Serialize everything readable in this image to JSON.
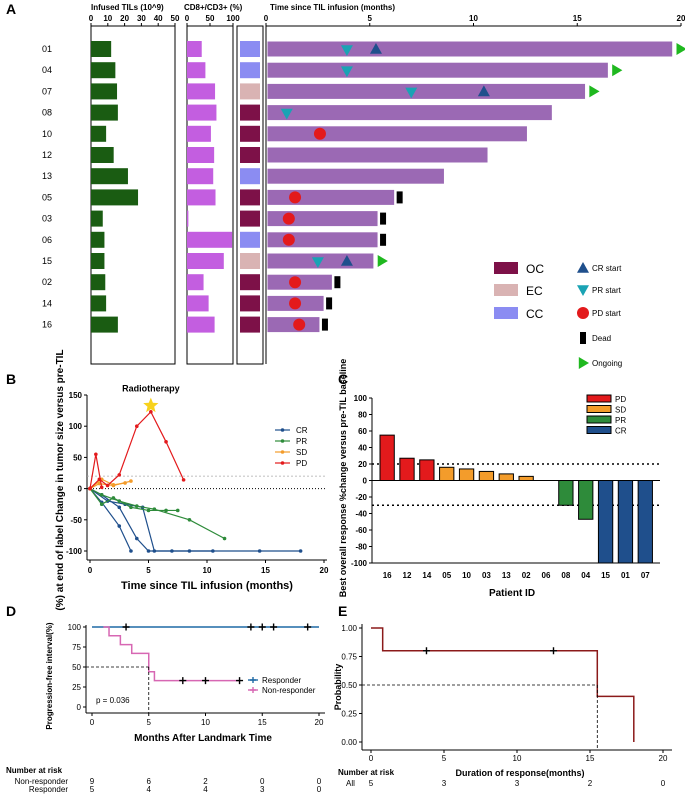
{
  "colors": {
    "infused": "#1a5c12",
    "cd8": "#c35ee0",
    "swim": "#9b69b4",
    "OC": "#7d1148",
    "EC": "#d9b3b3",
    "CC": "#8b8cf2",
    "cr": "#1f4f8c",
    "pr": "#1aa3b4",
    "pd": "#e31a1c",
    "dead": "#000000",
    "ongoing": "#1fb81f",
    "sd": "#f39c2b",
    "pr_bar": "#2e8b3a",
    "cr_bar": "#1f4f8c",
    "km_line": "#1f6aa5",
    "km_nonresp": "#d767b3",
    "km_e": "#8b1a1a"
  },
  "panel_labels": [
    "A",
    "B",
    "C",
    "D",
    "E"
  ],
  "chart_data": [
    {
      "panel": "A",
      "type": "bar",
      "subtype": "swimmer",
      "patients": [
        "01",
        "04",
        "07",
        "08",
        "10",
        "12",
        "13",
        "05",
        "03",
        "06",
        "15",
        "02",
        "14",
        "16"
      ],
      "infused_tils": {
        "title": "Infused TILs (10^9)",
        "ticks": [
          "0",
          "10",
          "20",
          "30",
          "40",
          "50"
        ],
        "xlim": [
          0,
          50
        ],
        "values": [
          12,
          14.5,
          15.5,
          16,
          9,
          13.5,
          22,
          28,
          7,
          8,
          8,
          8.5,
          9,
          16
        ]
      },
      "cd8_cd3": {
        "title": "CD8+/CD3+ (%)",
        "ticks": [
          "0",
          "50",
          "100"
        ],
        "xlim": [
          0,
          100
        ],
        "values": [
          32,
          40,
          61,
          64,
          52,
          59,
          57,
          62,
          3,
          98,
          80,
          36,
          47,
          60
        ]
      },
      "cancer_type": [
        "CC",
        "CC",
        "EC",
        "OC",
        "OC",
        "OC",
        "CC",
        "OC",
        "OC",
        "CC",
        "EC",
        "OC",
        "OC",
        "OC"
      ],
      "swim": {
        "title": "Time since TIL infusion (months)",
        "ticks": [
          "0",
          "5",
          "10",
          "15",
          "20"
        ],
        "xlim": [
          0,
          20
        ],
        "durations": [
          19.6,
          16.5,
          15.4,
          13.8,
          12.6,
          10.7,
          8.6,
          6.2,
          5.4,
          5.4,
          5.2,
          3.2,
          2.8,
          2.6
        ]
      },
      "events": {
        "cr_start": [
          [
            0,
            5.3
          ],
          [
            2,
            10.5
          ],
          [
            10,
            3.9
          ]
        ],
        "pr_start": [
          [
            0,
            3.9
          ],
          [
            1,
            3.9
          ],
          [
            2,
            7.0
          ],
          [
            3,
            1.0
          ],
          [
            10,
            2.5
          ]
        ],
        "pd_start": [
          [
            4,
            2.6
          ],
          [
            7,
            1.4
          ],
          [
            8,
            1.1
          ],
          [
            9,
            1.1
          ],
          [
            11,
            1.4
          ],
          [
            12,
            1.4
          ],
          [
            13,
            1.6
          ]
        ],
        "dead": [
          7,
          8,
          9,
          11,
          12,
          13
        ],
        "ongoing": [
          0,
          1,
          2,
          10
        ]
      },
      "legend": {
        "types": [
          "OC",
          "EC",
          "CC"
        ],
        "markers": [
          "CR start",
          "PR start",
          "PD start",
          "Dead",
          "Ongoing"
        ]
      }
    },
    {
      "panel": "B",
      "type": "line",
      "xlabel": "Time since TIL infusion (months)",
      "ylabel": "(%) at end of label Change in tumor size versus pre-TIL",
      "xticks": [
        "0",
        "5",
        "10",
        "15",
        "20"
      ],
      "yticks": [
        "150",
        "100",
        "50",
        "0",
        "-50",
        "-100"
      ],
      "xlim": [
        0,
        20
      ],
      "ylim": [
        -100,
        150
      ],
      "ref_line": 20,
      "annotation": "Radiotherapy",
      "annotation_point": [
        5.2,
        133
      ],
      "series": [
        {
          "name": "CR",
          "color": "#1f4f8c",
          "lines": [
            [
              [
                0,
                0
              ],
              [
                1,
                -22
              ],
              [
                2.5,
                -60
              ],
              [
                3.5,
                -100
              ]
            ],
            [
              [
                0,
                0
              ],
              [
                1.5,
                -20
              ],
              [
                3,
                -25
              ],
              [
                4.5,
                -30
              ],
              [
                5.5,
                -100
              ],
              [
                7,
                -100
              ],
              [
                8.5,
                -100
              ],
              [
                10.5,
                -100
              ]
            ],
            [
              [
                0,
                0
              ],
              [
                1,
                -10
              ],
              [
                2.5,
                -30
              ],
              [
                4,
                -80
              ],
              [
                5,
                -100
              ],
              [
                14.5,
                -100
              ],
              [
                18,
                -100
              ]
            ]
          ]
        },
        {
          "name": "PR",
          "color": "#2e8b3a",
          "lines": [
            [
              [
                0,
                0
              ],
              [
                1,
                -25
              ],
              [
                2,
                -15
              ],
              [
                3.5,
                -30
              ],
              [
                5,
                -35
              ],
              [
                6.5,
                -35
              ],
              [
                7.5,
                -35
              ]
            ],
            [
              [
                0,
                0
              ],
              [
                1,
                -10
              ],
              [
                2.5,
                -20
              ],
              [
                4,
                -28
              ],
              [
                5.5,
                -33
              ],
              [
                8.5,
                -50
              ],
              [
                11.5,
                -80
              ]
            ]
          ]
        },
        {
          "name": "SD",
          "color": "#f39c2b",
          "lines": [
            [
              [
                0,
                0
              ],
              [
                0.8,
                8
              ],
              [
                2,
                5
              ],
              [
                3.5,
                12
              ]
            ],
            [
              [
                0,
                0
              ],
              [
                1,
                15
              ],
              [
                2,
                6
              ],
              [
                3,
                9
              ]
            ]
          ]
        },
        {
          "name": "PD",
          "color": "#e31a1c",
          "lines": [
            [
              [
                0,
                0
              ],
              [
                0.5,
                55
              ],
              [
                1,
                2
              ]
            ],
            [
              [
                0,
                0
              ],
              [
                0.8,
                15
              ],
              [
                1.5,
                5
              ],
              [
                2.5,
                22
              ],
              [
                4,
                100
              ],
              [
                5.2,
                123
              ],
              [
                6.5,
                75
              ],
              [
                8,
                14
              ]
            ]
          ]
        }
      ]
    },
    {
      "panel": "C",
      "type": "bar",
      "xlabel": "Patient ID",
      "ylabel": "Best overall response %change versus pre-TIL baseline",
      "categories": [
        "16",
        "12",
        "14",
        "05",
        "10",
        "03",
        "13",
        "02",
        "06",
        "08",
        "04",
        "15",
        "01",
        "07"
      ],
      "values": [
        55,
        27,
        25,
        16,
        14,
        11,
        8,
        5,
        0,
        -30,
        -47,
        -100,
        -100,
        -100
      ],
      "response": [
        "PD",
        "PD",
        "PD",
        "SD",
        "SD",
        "SD",
        "SD",
        "SD",
        "SD",
        "PR",
        "PR",
        "CR",
        "CR",
        "CR"
      ],
      "yticks": [
        "100",
        "80",
        "60",
        "40",
        "20",
        "0",
        "-20",
        "-40",
        "-60",
        "-80",
        "-100"
      ],
      "ylim": [
        -100,
        100
      ],
      "ref_lines": [
        20,
        -30
      ],
      "legend": [
        "PD",
        "SD",
        "PR",
        "CR"
      ]
    },
    {
      "panel": "D",
      "type": "line",
      "subtype": "kaplan-meier",
      "xlabel": "Months After Landmark Time",
      "ylabel": "Progression-free interval(%)",
      "xticks": [
        "0",
        "5",
        "10",
        "15",
        "20"
      ],
      "yticks": [
        "100",
        "75",
        "50",
        "25",
        "0"
      ],
      "xlim": [
        0,
        20
      ],
      "ylim": [
        0,
        100
      ],
      "series": [
        {
          "name": "Responder",
          "color": "#1f6aa5",
          "steps": [
            [
              0,
              100
            ],
            [
              20,
              100
            ]
          ],
          "censor": [
            [
              3,
              100
            ],
            [
              14,
              100
            ],
            [
              15,
              100
            ],
            [
              16,
              100
            ],
            [
              19,
              100
            ]
          ]
        },
        {
          "name": "Non-responder",
          "color": "#d767b3",
          "steps": [
            [
              1,
              100
            ],
            [
              1.5,
              100
            ],
            [
              1.5,
              89
            ],
            [
              2.5,
              89
            ],
            [
              2.5,
              78
            ],
            [
              3.5,
              78
            ],
            [
              3.5,
              67
            ],
            [
              5,
              67
            ],
            [
              5,
              44
            ],
            [
              5.5,
              44
            ],
            [
              5.5,
              33
            ],
            [
              13,
              33
            ]
          ],
          "censor": [
            [
              8,
              33
            ],
            [
              10,
              33
            ],
            [
              13,
              33
            ]
          ]
        }
      ],
      "pvalue": "p = 0.036",
      "median": 5,
      "risk_table": {
        "title": "Number at risk",
        "rows": [
          {
            "label": "Non-responder",
            "values": [
              "9",
              "6",
              "2",
              "0",
              "0"
            ]
          },
          {
            "label": "Responder",
            "values": [
              "5",
              "4",
              "4",
              "3",
              "0"
            ]
          }
        ]
      }
    },
    {
      "panel": "E",
      "type": "line",
      "subtype": "kaplan-meier",
      "xlabel": "Duration of response(months)",
      "ylabel": "Probability",
      "xticks": [
        "0",
        "5",
        "10",
        "15",
        "20"
      ],
      "yticks": [
        "1.00",
        "0.75",
        "0.50",
        "0.25",
        "0.00"
      ],
      "xlim": [
        0,
        20
      ],
      "ylim": [
        0,
        1
      ],
      "steps": [
        [
          0,
          1
        ],
        [
          0.8,
          1
        ],
        [
          0.8,
          0.8
        ],
        [
          15.5,
          0.8
        ],
        [
          15.5,
          0.4
        ],
        [
          18,
          0.4
        ],
        [
          18,
          0
        ]
      ],
      "censor": [
        [
          3.8,
          0.8
        ],
        [
          12.5,
          0.8
        ]
      ],
      "median": 15.5,
      "risk_table": {
        "title": "Number at risk",
        "rows": [
          {
            "label": "All",
            "values": [
              "5",
              "3",
              "3",
              "2",
              "0"
            ]
          }
        ]
      }
    }
  ]
}
